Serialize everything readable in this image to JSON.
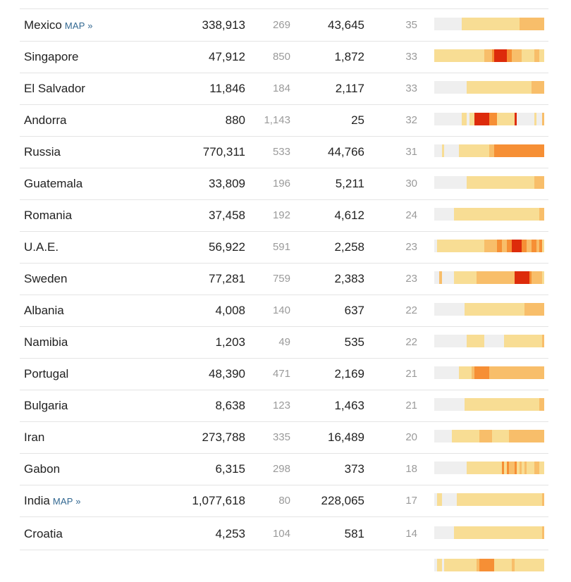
{
  "table": {
    "rows": [
      {
        "country": "Mexico",
        "map_label": "MAP »",
        "cases": "338,913",
        "per_100k": "269",
        "deaths": "43,645",
        "daily_avg": "35",
        "trend": "00000000000222222222222222222222223333333333"
      },
      {
        "country": "Singapore",
        "map_label": "",
        "cases": "47,912",
        "per_100k": "850",
        "deaths": "1,872",
        "daily_avg": "33",
        "trend": "22222222222222222222333455555443333222223322"
      },
      {
        "country": "El Salvador",
        "map_label": "",
        "cases": "11,846",
        "per_100k": "184",
        "deaths": "2,117",
        "daily_avg": "33",
        "trend": "00000000000002222222222222222222222222233333"
      },
      {
        "country": "Andorra",
        "map_label": "",
        "cases": "880",
        "per_100k": "1,143",
        "deaths": "25",
        "daily_avg": "32",
        "trend": "00000000000220225555554442222222500000002003"
      },
      {
        "country": "Russia",
        "map_label": "",
        "cases": "770,311",
        "per_100k": "533",
        "deaths": "44,766",
        "daily_avg": "31",
        "trend": "00020000002222222222223344444444444444444444"
      },
      {
        "country": "Guatemala",
        "map_label": "",
        "cases": "33,809",
        "per_100k": "196",
        "deaths": "5,211",
        "daily_avg": "30",
        "trend": "00000000000002222222222222222222222222223333"
      },
      {
        "country": "Romania",
        "map_label": "",
        "cases": "37,458",
        "per_100k": "192",
        "deaths": "4,612",
        "daily_avg": "24",
        "trend": "00000000222222222222222222222222222222222233"
      },
      {
        "country": "U.A.E.",
        "map_label": "",
        "cases": "56,922",
        "per_100k": "591",
        "deaths": "2,258",
        "daily_avg": "23",
        "trend": "02222222222222222222333334433445555443344342"
      },
      {
        "country": "Sweden",
        "map_label": "",
        "cases": "77,281",
        "per_100k": "759",
        "deaths": "2,383",
        "daily_avg": "23",
        "trend": "00300000222222222333333333333333555555433332"
      },
      {
        "country": "Albania",
        "map_label": "",
        "cases": "4,008",
        "per_100k": "140",
        "deaths": "637",
        "daily_avg": "22",
        "trend": "00000000000022222222222222222222222233333333"
      },
      {
        "country": "Namibia",
        "map_label": "",
        "cases": "1,203",
        "per_100k": "49",
        "deaths": "535",
        "daily_avg": "22",
        "trend": "00000000000002222222000000002222222222222223"
      },
      {
        "country": "Portugal",
        "map_label": "",
        "cases": "48,390",
        "per_100k": "471",
        "deaths": "2,169",
        "daily_avg": "21",
        "trend": "00000000002222234444443333333333333333333333"
      },
      {
        "country": "Bulgaria",
        "map_label": "",
        "cases": "8,638",
        "per_100k": "123",
        "deaths": "1,463",
        "daily_avg": "21",
        "trend": "00000000000022222222222222222222222222222233"
      },
      {
        "country": "Iran",
        "map_label": "",
        "cases": "273,788",
        "per_100k": "335",
        "deaths": "16,489",
        "daily_avg": "20",
        "trend": "00000002222222222233333222222233333333333333"
      },
      {
        "country": "Gabon",
        "map_label": "",
        "cases": "6,315",
        "per_100k": "298",
        "deaths": "373",
        "daily_avg": "18",
        "trend": "00000000000002222222222222242433423232223322"
      },
      {
        "country": "India",
        "map_label": "MAP »",
        "cases": "1,077,618",
        "per_100k": "80",
        "deaths": "228,065",
        "daily_avg": "17",
        "trend": "02200000022222222222222222222222222222222223"
      },
      {
        "country": "Croatia",
        "map_label": "",
        "cases": "4,253",
        "per_100k": "104",
        "deaths": "581",
        "daily_avg": "14",
        "trend": "00000000222222222222222222222222222222222223"
      },
      {
        "country": "",
        "map_label": "",
        "cases": "",
        "per_100k": "",
        "deaths": "",
        "daily_avg": "",
        "trend": "02202222222222222344444422222223222222222222"
      }
    ]
  },
  "colors": {
    "level_0": "#efefef",
    "level_1": "#faf0c8",
    "level_2": "#f8dd94",
    "level_3": "#f8be6a",
    "level_4": "#f68f35",
    "level_5": "#dd2b0b",
    "map_link": "#326891"
  }
}
